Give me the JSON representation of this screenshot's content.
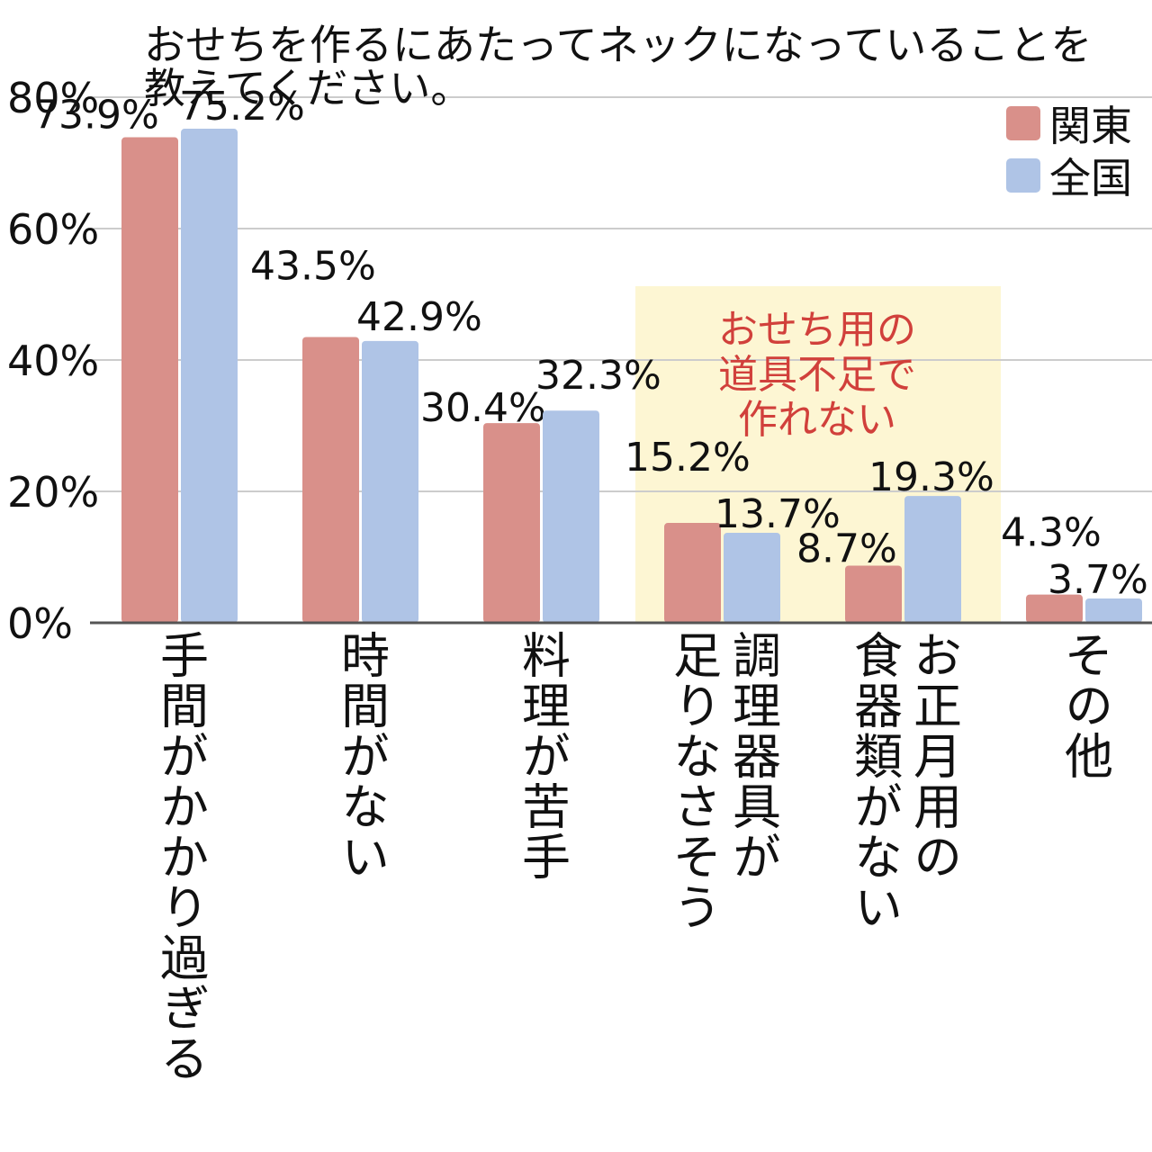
{
  "chart_data": {
    "type": "bar",
    "title_lines": [
      "おせちを作るにあたってネックになっていることを",
      "教えてください。"
    ],
    "categories": [
      [
        "手間がかかり過ぎる"
      ],
      [
        "時間がない"
      ],
      [
        "料理が苦手"
      ],
      [
        "調理器具が",
        "足りなさそう"
      ],
      [
        "お正月用の",
        "食器類がない"
      ],
      [
        "その他"
      ]
    ],
    "series": [
      {
        "name": "関東",
        "color": "#d9908a",
        "values": [
          73.9,
          43.5,
          30.4,
          15.2,
          8.7,
          4.3
        ]
      },
      {
        "name": "全国",
        "color": "#afc4e6",
        "values": [
          75.2,
          42.9,
          32.3,
          13.7,
          19.3,
          3.7
        ]
      }
    ],
    "value_labels": [
      [
        "73.9%",
        "43.5%",
        "30.4%",
        "15.2%",
        "8.7%",
        "4.3%"
      ],
      [
        "75.2%",
        "42.9%",
        "32.3%",
        "13.7%",
        "19.3%",
        "3.7%"
      ]
    ],
    "ylim": [
      0,
      80
    ],
    "yticks": [
      0,
      20,
      40,
      60,
      80
    ],
    "ytick_labels": [
      "0%",
      "20%",
      "40%",
      "60%",
      "80%"
    ],
    "grid": true,
    "legend_position": "top-right",
    "highlight": {
      "categories": [
        3,
        4
      ],
      "lines": [
        "おせち用の",
        "道具不足で",
        "作れない"
      ],
      "fill": "#fdf6d3",
      "text_color": "#d1403b"
    }
  }
}
